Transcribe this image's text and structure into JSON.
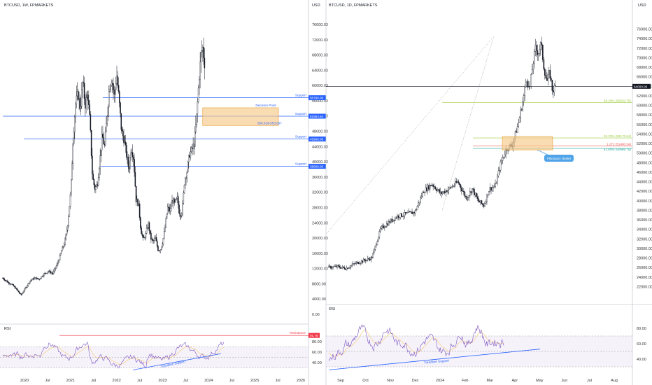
{
  "colors": {
    "background": "#ffffff",
    "candle": "#131722",
    "support_line": "#2962ff",
    "zone_fill": "#f7c98a",
    "zone_stroke": "#e69a2a",
    "resistance": "#f23645",
    "rsi_line": "#7e57c2",
    "rsi_ma": "#f5c86b",
    "rsi_band": "#ede7f6",
    "fib_green": "#9ccc3a",
    "fib_teal": "#26a69a",
    "fib_red": "#ef5350",
    "callout": "#4fa3e8",
    "price_box": "#2962ff",
    "black_box": "#131722"
  },
  "left_chart": {
    "title": "BTCUSD, 1W, FPMARKETS",
    "currency": "USD",
    "annotations": {
      "decision_point": "Decision Point",
      "zone_label": "550,619-553,057",
      "trendline": "Trendline Support",
      "resistance": "Resistance"
    },
    "rsi_title": "RSI",
    "rsi_resistance_value": "91.78"
  },
  "right_chart": {
    "title": "BTCUSD, 1D, FPMARKETS",
    "currency": "USD",
    "current_price": "64000.00",
    "callout": "Fibonacci cluster",
    "rsi_title": "RSI",
    "trendline": "Trendline Support"
  },
  "chart_data": [
    {
      "id": "left-weekly",
      "type": "candlestick",
      "title": "BTCUSD, 1W, FPMARKETS",
      "ylim": [
        0,
        76000
      ],
      "y_ticks": [
        "76000.00",
        "72000.00",
        "68000.00",
        "64000.00",
        "60000.00",
        "56000.00",
        "52000.00",
        "48000.00",
        "44000.00",
        "40000.00",
        "36000.00",
        "32000.00",
        "28000.00",
        "24000.00",
        "20000.00",
        "16000.00",
        "12000.00",
        "8000.00",
        "4000.00",
        "0.00"
      ],
      "x_ticks": [
        "2020",
        "Jul",
        "2021",
        "Jul",
        "2022",
        "Jul",
        "2023",
        "Jul",
        "2024",
        "Jul",
        "2025",
        "Jul",
        "2026"
      ],
      "levels": [
        {
          "label": "Support",
          "value": 56796.0,
          "price_tag": "56796.00",
          "start": 0.33
        },
        {
          "label": "Support",
          "value": 51953.84,
          "price_tag": "51953.84",
          "start": 0.0
        },
        {
          "label": "Support",
          "value": 45968.0,
          "price_tag": "45968.00",
          "start": 0.07
        },
        {
          "label": "Support",
          "value": 38809.0,
          "price_tag": "38809.00",
          "start": 0.32
        }
      ],
      "zone": {
        "low": 50619,
        "high": 53057,
        "label": "550,619-553,057"
      },
      "series": [
        {
          "points": [
            [
              0,
              9500
            ],
            [
              0.015,
              8500
            ],
            [
              0.03,
              7800
            ],
            [
              0.045,
              6600
            ],
            [
              0.06,
              5000
            ],
            [
              0.075,
              6900
            ],
            [
              0.09,
              8800
            ],
            [
              0.105,
              9500
            ],
            [
              0.12,
              9200
            ],
            [
              0.135,
              10500
            ],
            [
              0.15,
              11300
            ],
            [
              0.165,
              10700
            ],
            [
              0.18,
              13200
            ],
            [
              0.195,
              16800
            ],
            [
              0.205,
              19000
            ],
            [
              0.215,
              24000
            ],
            [
              0.225,
              33000
            ],
            [
              0.232,
              46000
            ],
            [
              0.24,
              55000
            ],
            [
              0.248,
              58000
            ],
            [
              0.256,
              54000
            ],
            [
              0.264,
              61000
            ],
            [
              0.272,
              55000
            ],
            [
              0.28,
              58000
            ],
            [
              0.288,
              50000
            ],
            [
              0.296,
              36000
            ],
            [
              0.304,
              33000
            ],
            [
              0.312,
              34000
            ],
            [
              0.32,
              40000
            ],
            [
              0.328,
              47000
            ],
            [
              0.336,
              44000
            ],
            [
              0.344,
              52000
            ],
            [
              0.352,
              60000
            ],
            [
              0.36,
              62000
            ],
            [
              0.368,
              57000
            ],
            [
              0.376,
              63000
            ],
            [
              0.384,
              56000
            ],
            [
              0.392,
              48000
            ],
            [
              0.4,
              46000
            ],
            [
              0.408,
              42000
            ],
            [
              0.416,
              38000
            ],
            [
              0.424,
              44000
            ],
            [
              0.432,
              41000
            ],
            [
              0.44,
              30000
            ],
            [
              0.448,
              29000
            ],
            [
              0.456,
              22000
            ],
            [
              0.464,
              19500
            ],
            [
              0.472,
              21000
            ],
            [
              0.48,
              24000
            ],
            [
              0.488,
              20000
            ],
            [
              0.496,
              19000
            ],
            [
              0.504,
              20000
            ],
            [
              0.512,
              17000
            ],
            [
              0.52,
              16800
            ],
            [
              0.528,
              19000
            ],
            [
              0.536,
              23000
            ],
            [
              0.544,
              28000
            ],
            [
              0.552,
              27000
            ],
            [
              0.56,
              30000
            ],
            [
              0.568,
              29000
            ],
            [
              0.576,
              30500
            ],
            [
              0.584,
              26000
            ],
            [
              0.592,
              27000
            ],
            [
              0.6,
              35000
            ],
            [
              0.608,
              37500
            ],
            [
              0.616,
              42000
            ],
            [
              0.624,
              43000
            ],
            [
              0.632,
              45000
            ],
            [
              0.64,
              52000
            ],
            [
              0.648,
              62000
            ],
            [
              0.654,
              68000
            ],
            [
              0.66,
              70000
            ],
            [
              0.666,
              66000
            ]
          ]
        }
      ],
      "rsi": {
        "ylim": [
          20,
          100
        ],
        "y_ticks": [
          "80.00",
          "60.00",
          "40.00"
        ],
        "resistance": 91.78,
        "band": [
          30,
          70
        ]
      }
    },
    {
      "id": "right-daily",
      "type": "candlestick",
      "title": "BTCUSD, 1D, FPMARKETS",
      "ylim": [
        20000,
        78000
      ],
      "y_ticks": [
        "76000.00",
        "74000.00",
        "72000.00",
        "70000.00",
        "68000.00",
        "66000.00",
        "64000.00",
        "62000.00",
        "60000.00",
        "58000.00",
        "56000.00",
        "54000.00",
        "52000.00",
        "50000.00",
        "48000.00",
        "46000.00",
        "44000.00",
        "42000.00",
        "40000.00",
        "38000.00",
        "36000.00",
        "34000.00",
        "32000.00",
        "30000.00",
        "28000.00",
        "26000.00",
        "24000.00",
        "22000.00"
      ],
      "x_ticks": [
        "Sep",
        "Oct",
        "Nov",
        "Dec",
        "2024",
        "Feb",
        "Mar",
        "Apr",
        "May",
        "Jun",
        "Jul",
        "Aug"
      ],
      "current_price": 64000.0,
      "fib_levels": [
        {
          "label": "38.20% (60592.75)",
          "value": 60592.75
        },
        {
          "label": "38.20% (53173.64)",
          "value": 53173.64
        },
        {
          "label": "1.272 (51480.54)",
          "value": 51480.54
        },
        {
          "label": "61.80% (50966.75)",
          "value": 50966.75
        }
      ],
      "series": [
        {
          "points": [
            [
              0,
              26000
            ],
            [
              0.03,
              26200
            ],
            [
              0.06,
              25800
            ],
            [
              0.09,
              26800
            ],
            [
              0.12,
              27400
            ],
            [
              0.15,
              28000
            ],
            [
              0.18,
              34000
            ],
            [
              0.21,
              35500
            ],
            [
              0.24,
              36800
            ],
            [
              0.27,
              37200
            ],
            [
              0.3,
              37600
            ],
            [
              0.33,
              42000
            ],
            [
              0.36,
              43500
            ],
            [
              0.39,
              41500
            ],
            [
              0.42,
              42500
            ],
            [
              0.45,
              44000
            ],
            [
              0.48,
              40500
            ],
            [
              0.5,
              42500
            ],
            [
              0.52,
              40000
            ],
            [
              0.54,
              39000
            ],
            [
              0.56,
              42500
            ],
            [
              0.58,
              43000
            ],
            [
              0.6,
              48000
            ],
            [
              0.62,
              51000
            ],
            [
              0.64,
              51800
            ],
            [
              0.66,
              56000
            ],
            [
              0.68,
              62000
            ],
            [
              0.69,
              66000
            ],
            [
              0.7,
              63000
            ],
            [
              0.71,
              68000
            ],
            [
              0.72,
              72000
            ],
            [
              0.73,
              71000
            ],
            [
              0.74,
              73000
            ],
            [
              0.75,
              68000
            ],
            [
              0.76,
              65000
            ],
            [
              0.77,
              67000
            ],
            [
              0.78,
              63000
            ],
            [
              0.79,
              64000
            ]
          ]
        }
      ],
      "rsi": {
        "ylim": [
          20,
          100
        ],
        "y_ticks": [
          "80.00",
          "60.00",
          "40.00"
        ],
        "band": [
          30,
          70
        ]
      }
    }
  ]
}
